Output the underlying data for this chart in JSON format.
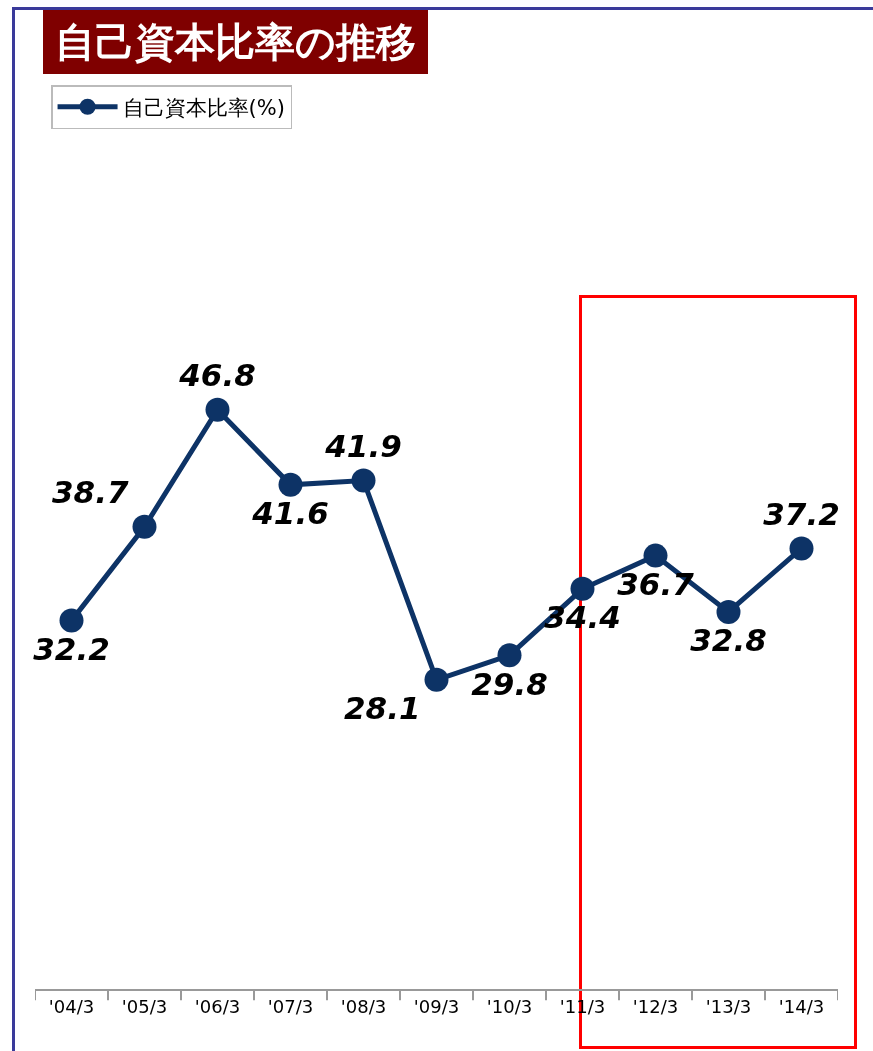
{
  "chart_data": {
    "type": "line",
    "title": "自己資本比率の推移",
    "categories": [
      "'04/3",
      "'05/3",
      "'06/3",
      "'07/3",
      "'08/3",
      "'09/3",
      "'10/3",
      "'11/3",
      "'12/3",
      "'13/3",
      "'14/3"
    ],
    "series": [
      {
        "name": "自己資本比率(%)",
        "color": "#0d3366",
        "values": [
          32.2,
          38.7,
          46.8,
          41.6,
          41.9,
          28.1,
          29.8,
          34.4,
          36.7,
          32.8,
          37.2
        ]
      }
    ],
    "data_labels": true,
    "marker": "circle",
    "line_style": "solid",
    "grid": false,
    "legend": "top left",
    "tick_labels": "x"
  }
}
